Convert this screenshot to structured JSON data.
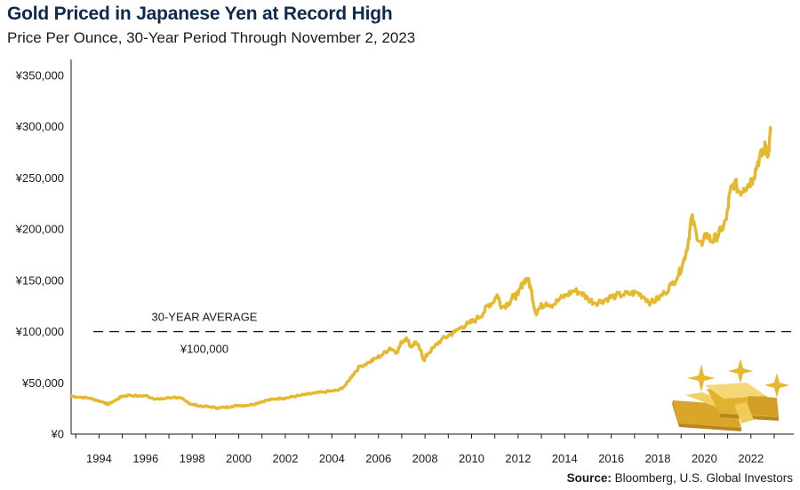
{
  "title": "Gold Priced in Japanese Yen at Record High",
  "subtitle": "Price Per Ounce, 30-Year Period Through November 2, 2023",
  "source": {
    "label": "Source:",
    "text": " Bloomberg, U.S. Global Investors"
  },
  "colors": {
    "line": "#e5b82f",
    "bars": "#e5b82f",
    "text": "#1a1a1a",
    "title": "#0d2a4e"
  },
  "chart_data": {
    "type": "line",
    "title": "Gold Priced in Japanese Yen at Record High",
    "subtitle": "Price Per Ounce, 30-Year Period Through November 2, 2023",
    "xlabel": "",
    "ylabel": "",
    "xlim": [
      1992.8,
      2023.84
    ],
    "ylim": [
      0,
      350000
    ],
    "grid": false,
    "legend": "none",
    "x_ticks": [
      {
        "value": 1994,
        "label": "1994"
      },
      {
        "value": 1996,
        "label": "1996"
      },
      {
        "value": 1998,
        "label": "1998"
      },
      {
        "value": 2000,
        "label": "2000"
      },
      {
        "value": 2002,
        "label": "2002"
      },
      {
        "value": 2004,
        "label": "2004"
      },
      {
        "value": 2006,
        "label": "2006"
      },
      {
        "value": 2008,
        "label": "2008"
      },
      {
        "value": 2010,
        "label": "2010"
      },
      {
        "value": 2012,
        "label": "2012"
      },
      {
        "value": 2014,
        "label": "2014"
      },
      {
        "value": 2016,
        "label": "2016"
      },
      {
        "value": 2018,
        "label": "2018"
      },
      {
        "value": 2020,
        "label": "2020"
      },
      {
        "value": 2022,
        "label": "2022"
      }
    ],
    "y_ticks": [
      {
        "value": 0,
        "label": "¥0"
      },
      {
        "value": 50000,
        "label": "¥50,000"
      },
      {
        "value": 100000,
        "label": "¥100,000"
      },
      {
        "value": 150000,
        "label": "¥150,000"
      },
      {
        "value": 200000,
        "label": "¥200,000"
      },
      {
        "value": 250000,
        "label": "¥250,000"
      },
      {
        "value": 300000,
        "label": "¥300,000"
      },
      {
        "value": 350000,
        "label": "¥350,000"
      }
    ],
    "reference_line": {
      "value": 100000,
      "label": "30-YEAR AVERAGE",
      "value_label": "¥100,000"
    },
    "series": [
      {
        "values": [
          [
            1992.8,
            37000
          ],
          [
            1993.2,
            36000
          ],
          [
            1993.6,
            35000
          ],
          [
            1993.9,
            33000
          ],
          [
            1994.2,
            31000
          ],
          [
            1994.4,
            29000
          ],
          [
            1994.7,
            33000
          ],
          [
            1995.0,
            37000
          ],
          [
            1995.3,
            38000
          ],
          [
            1995.7,
            37000
          ],
          [
            1996.0,
            37500
          ],
          [
            1996.3,
            35000
          ],
          [
            1996.6,
            34000
          ],
          [
            1996.9,
            35000
          ],
          [
            1997.2,
            36000
          ],
          [
            1997.5,
            35000
          ],
          [
            1997.8,
            31000
          ],
          [
            1998.0,
            29000
          ],
          [
            1998.2,
            28000
          ],
          [
            1998.5,
            27000
          ],
          [
            1998.8,
            26500
          ],
          [
            1999.1,
            25500
          ],
          [
            1999.4,
            26000
          ],
          [
            1999.7,
            27000
          ],
          [
            2000.0,
            28000
          ],
          [
            2000.3,
            28000
          ],
          [
            2000.6,
            29000
          ],
          [
            2000.9,
            31000
          ],
          [
            2001.2,
            33000
          ],
          [
            2001.5,
            34000
          ],
          [
            2001.8,
            35000
          ],
          [
            2002.0,
            35000
          ],
          [
            2002.3,
            36500
          ],
          [
            2002.6,
            37500
          ],
          [
            2003.0,
            39000
          ],
          [
            2003.3,
            40000
          ],
          [
            2003.6,
            41000
          ],
          [
            2004.0,
            42000
          ],
          [
            2004.3,
            43000
          ],
          [
            2004.6,
            48000
          ],
          [
            2004.9,
            58000
          ],
          [
            2005.2,
            66000
          ],
          [
            2005.6,
            70000
          ],
          [
            2005.9,
            74000
          ],
          [
            2006.2,
            78000
          ],
          [
            2006.5,
            84000
          ],
          [
            2006.8,
            80000
          ],
          [
            2007.0,
            90000
          ],
          [
            2007.2,
            94000
          ],
          [
            2007.4,
            85000
          ],
          [
            2007.6,
            90000
          ],
          [
            2007.8,
            82000
          ],
          [
            2007.95,
            72000
          ],
          [
            2008.1,
            78000
          ],
          [
            2008.4,
            85000
          ],
          [
            2008.7,
            92000
          ],
          [
            2009.0,
            96000
          ],
          [
            2009.3,
            100000
          ],
          [
            2009.6,
            105000
          ],
          [
            2009.9,
            108000
          ],
          [
            2010.2,
            112000
          ],
          [
            2010.5,
            118000
          ],
          [
            2010.7,
            126000
          ],
          [
            2010.9,
            128000
          ],
          [
            2011.1,
            136000
          ],
          [
            2011.3,
            124000
          ],
          [
            2011.6,
            128000
          ],
          [
            2011.8,
            134000
          ],
          [
            2012.0,
            136000
          ],
          [
            2012.2,
            148000
          ],
          [
            2012.4,
            152000
          ],
          [
            2012.55,
            142000
          ],
          [
            2012.75,
            118000
          ],
          [
            2012.95,
            124000
          ],
          [
            2013.2,
            128000
          ],
          [
            2013.5,
            126000
          ],
          [
            2013.8,
            132000
          ],
          [
            2014.1,
            136000
          ],
          [
            2014.4,
            140000
          ],
          [
            2014.7,
            138000
          ],
          [
            2015.0,
            132000
          ],
          [
            2015.3,
            128000
          ],
          [
            2015.6,
            130000
          ],
          [
            2015.9,
            133000
          ],
          [
            2016.2,
            135000
          ],
          [
            2016.5,
            136000
          ],
          [
            2016.8,
            137000
          ],
          [
            2017.1,
            138000
          ],
          [
            2017.4,
            134000
          ],
          [
            2017.7,
            128000
          ],
          [
            2018.0,
            132000
          ],
          [
            2018.3,
            138000
          ],
          [
            2018.6,
            146000
          ],
          [
            2018.9,
            156000
          ],
          [
            2019.1,
            168000
          ],
          [
            2019.3,
            186000
          ],
          [
            2019.45,
            212000
          ],
          [
            2019.65,
            196000
          ],
          [
            2019.9,
            184000
          ],
          [
            2020.1,
            196000
          ],
          [
            2020.3,
            188000
          ],
          [
            2020.5,
            192000
          ],
          [
            2020.7,
            198000
          ],
          [
            2020.95,
            210000
          ],
          [
            2021.1,
            236000
          ],
          [
            2021.3,
            246000
          ],
          [
            2021.5,
            236000
          ],
          [
            2021.7,
            240000
          ],
          [
            2021.9,
            244000
          ],
          [
            2022.1,
            250000
          ],
          [
            2022.3,
            266000
          ],
          [
            2022.5,
            274000
          ],
          [
            2022.65,
            282000
          ],
          [
            2022.75,
            272000
          ],
          [
            2022.85,
            298000
          ]
        ]
      }
    ]
  }
}
